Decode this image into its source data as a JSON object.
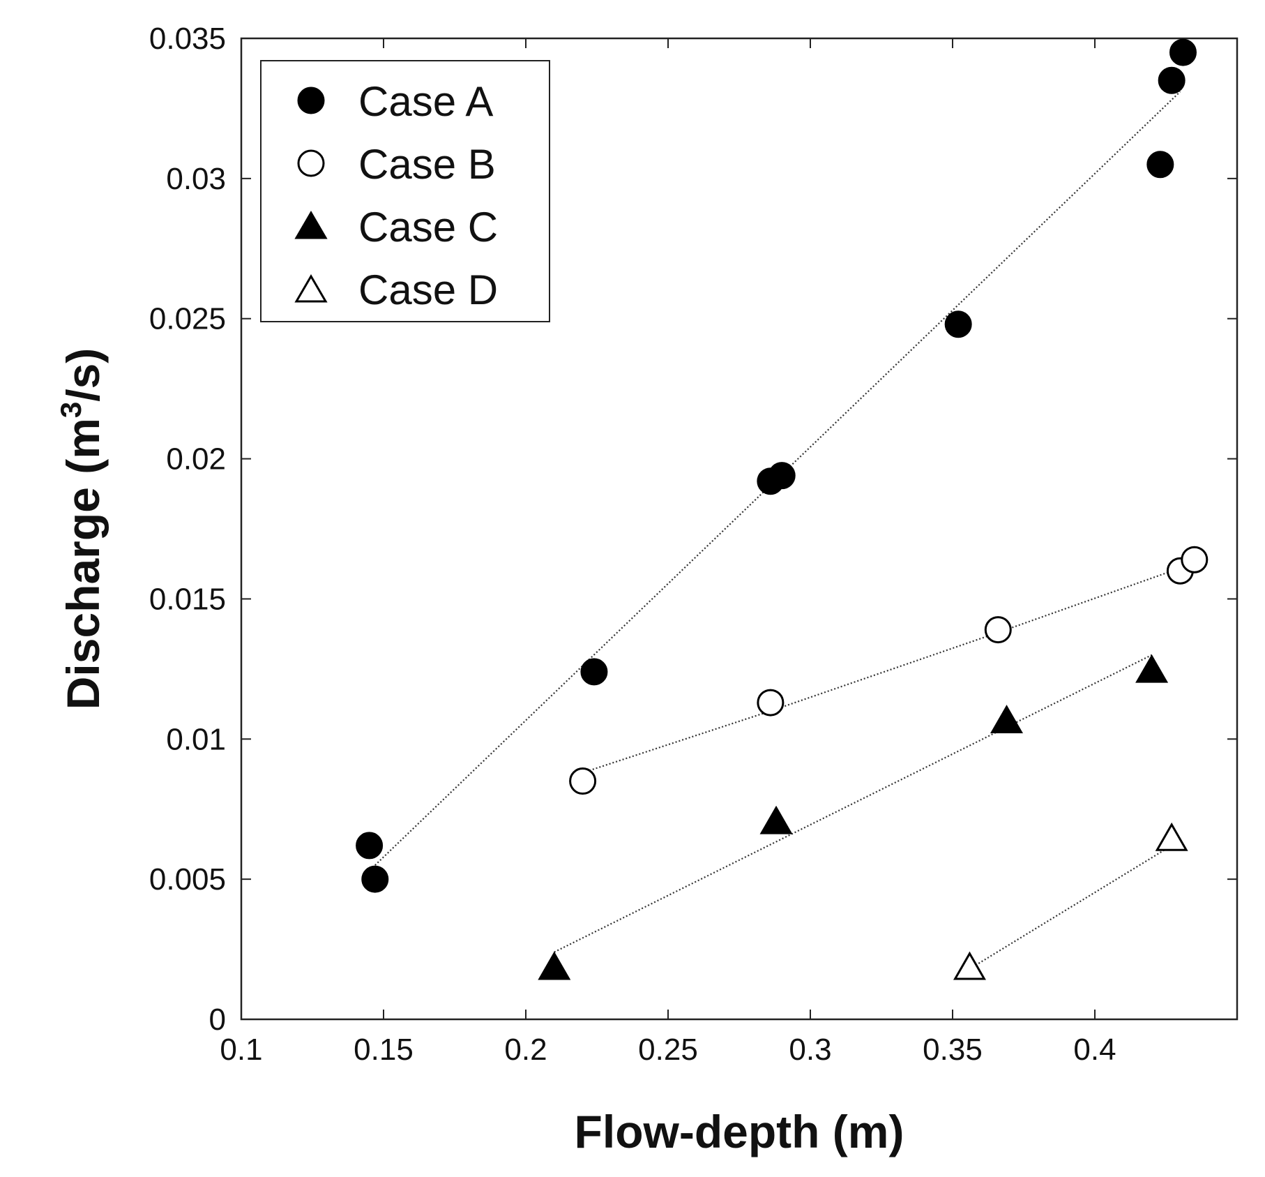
{
  "chart_data": {
    "type": "scatter",
    "title": "",
    "xlabel": "Flow-depth (m)",
    "ylabel_main": "Discharge (m",
    "ylabel_sup": "3",
    "ylabel_end": "/s)",
    "xlim": [
      0.1,
      0.45
    ],
    "ylim": [
      0,
      0.035
    ],
    "xticks": [
      0.1,
      0.15,
      0.2,
      0.25,
      0.3,
      0.35,
      0.4
    ],
    "xtick_labels": [
      "0.1",
      "0.15",
      "0.2",
      "0.25",
      "0.3",
      "0.35",
      "0.4"
    ],
    "yticks": [
      0,
      0.005,
      0.01,
      0.015,
      0.02,
      0.025,
      0.03,
      0.035
    ],
    "ytick_labels": [
      "0",
      "0.005",
      "0.01",
      "0.015",
      "0.02",
      "0.025",
      "0.03",
      "0.035"
    ],
    "grid": false,
    "legend_position": "top-left",
    "series": [
      {
        "name": "Case A",
        "marker": "circle",
        "filled": true,
        "x": [
          0.145,
          0.147,
          0.224,
          0.286,
          0.29,
          0.352,
          0.423,
          0.427,
          0.431
        ],
        "y": [
          0.0062,
          0.005,
          0.0124,
          0.0192,
          0.0194,
          0.0248,
          0.0305,
          0.0335,
          0.0345
        ],
        "trend": [
          [
            0.147,
            0.0055
          ],
          [
            0.43,
            0.0331
          ]
        ]
      },
      {
        "name": "Case B",
        "marker": "circle",
        "filled": false,
        "x": [
          0.22,
          0.286,
          0.366,
          0.43,
          0.435
        ],
        "y": [
          0.0085,
          0.0113,
          0.0139,
          0.016,
          0.0164
        ],
        "trend": [
          [
            0.22,
            0.0088
          ],
          [
            0.286,
            0.011
          ],
          [
            0.366,
            0.0138
          ],
          [
            0.43,
            0.0161
          ]
        ]
      },
      {
        "name": "Case C",
        "marker": "triangle",
        "filled": true,
        "x": [
          0.21,
          0.288,
          0.369,
          0.42
        ],
        "y": [
          0.0018,
          0.007,
          0.0106,
          0.0124
        ],
        "trend": [
          [
            0.21,
            0.0024
          ],
          [
            0.42,
            0.013
          ]
        ]
      },
      {
        "name": "Case D",
        "marker": "triangle",
        "filled": false,
        "x": [
          0.356,
          0.427
        ],
        "y": [
          0.0018,
          0.0064
        ],
        "trend": [
          [
            0.356,
            0.0018
          ],
          [
            0.427,
            0.0062
          ]
        ]
      }
    ]
  }
}
